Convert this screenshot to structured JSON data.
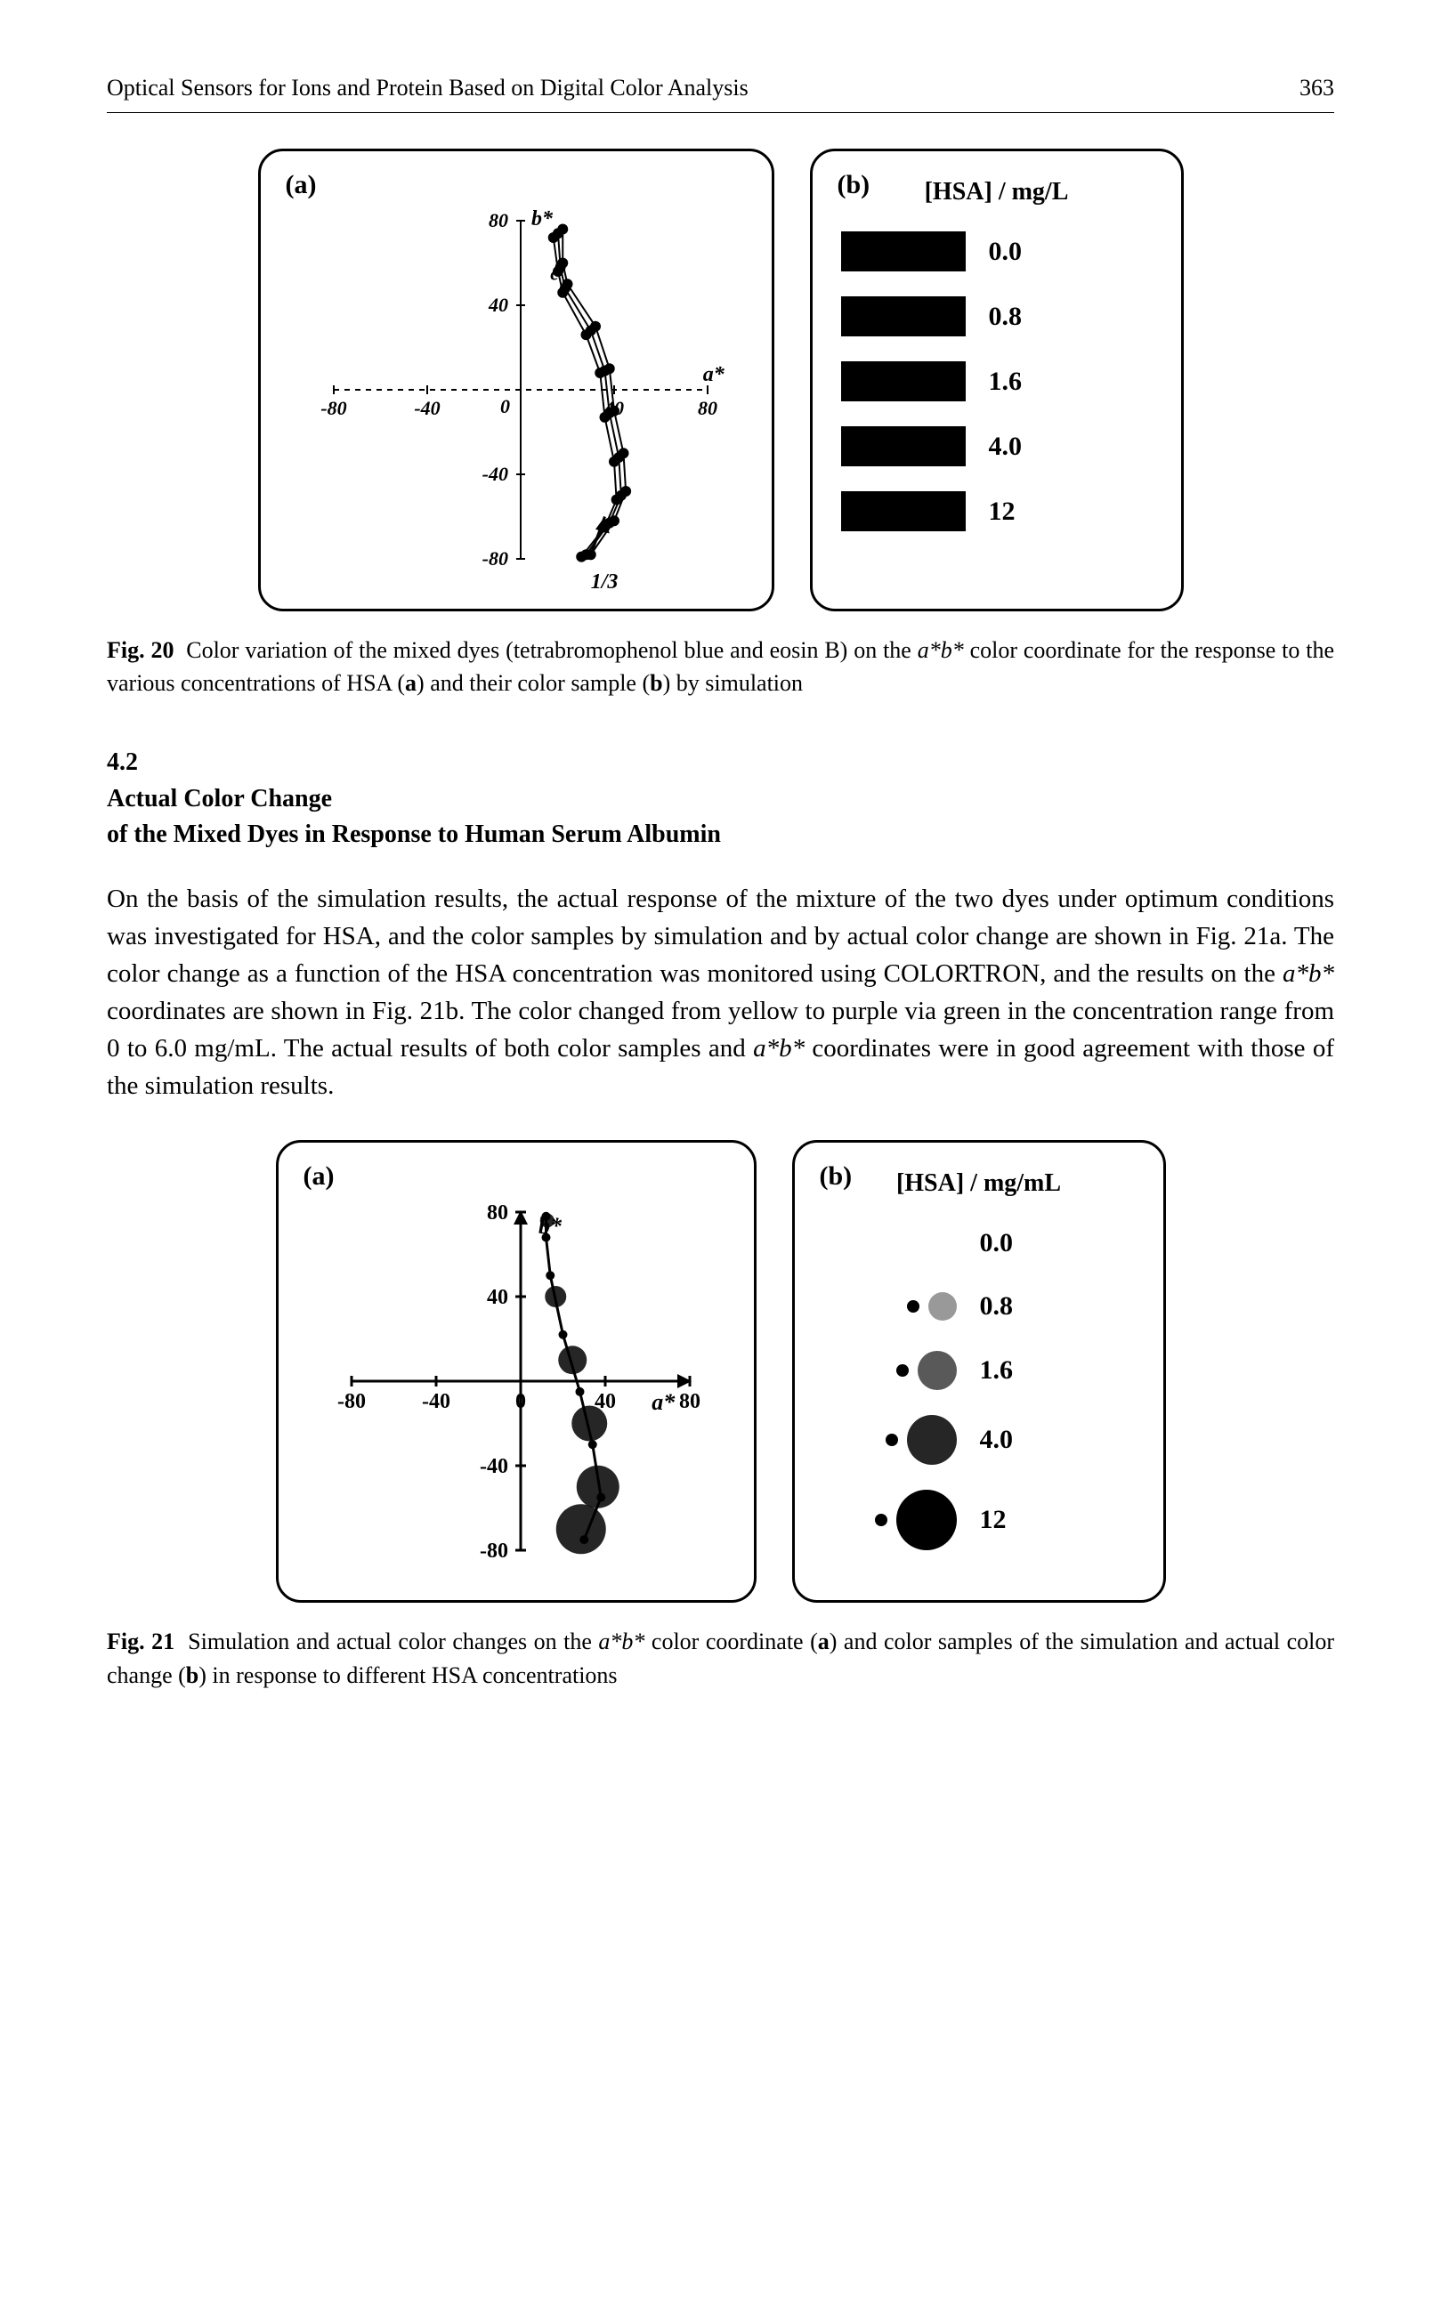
{
  "header": {
    "running_head": "Optical Sensors for Ions and Protein Based on Digital Color Analysis",
    "page_number": "363"
  },
  "fig20": {
    "panel_a": {
      "label": "(a)",
      "type": "scatter-line",
      "x_axis_label": "a*",
      "y_axis_label": "b*",
      "xlim": [
        -80,
        80
      ],
      "ylim": [
        -80,
        80
      ],
      "ticks": [
        -80,
        -40,
        0,
        40,
        80
      ],
      "annotation_c": "c",
      "annotation_ratio": "1/3",
      "series": [
        {
          "points": [
            [
              18,
              76
            ],
            [
              18,
              60
            ],
            [
              20,
              50
            ],
            [
              32,
              30
            ],
            [
              38,
              10
            ],
            [
              40,
              -10
            ],
            [
              44,
              -30
            ],
            [
              45,
              -48
            ],
            [
              40,
              -62
            ],
            [
              30,
              -78
            ]
          ],
          "color": "#000000",
          "line_width": 2
        },
        {
          "points": [
            [
              16,
              74
            ],
            [
              17,
              58
            ],
            [
              19,
              48
            ],
            [
              30,
              28
            ],
            [
              36,
              9
            ],
            [
              38,
              -11
            ],
            [
              42,
              -32
            ],
            [
              43,
              -50
            ],
            [
              38,
              -63
            ],
            [
              28,
              -78
            ]
          ],
          "color": "#000000",
          "line_width": 2
        },
        {
          "points": [
            [
              14,
              72
            ],
            [
              16,
              56
            ],
            [
              18,
              46
            ],
            [
              28,
              26
            ],
            [
              34,
              8
            ],
            [
              36,
              -13
            ],
            [
              40,
              -34
            ],
            [
              41,
              -52
            ],
            [
              36,
              -65
            ],
            [
              26,
              -79
            ]
          ],
          "color": "#000000",
          "line_width": 2
        }
      ],
      "marker_style": "circle",
      "marker_size": 6,
      "background_color": "#ffffff",
      "axis_color": "#000000"
    },
    "panel_b": {
      "label": "(b)",
      "title": "[HSA] / mg/L",
      "swatches": [
        {
          "color": "#000000",
          "value": "0.0"
        },
        {
          "color": "#000000",
          "value": "0.8"
        },
        {
          "color": "#000000",
          "value": "1.6"
        },
        {
          "color": "#000000",
          "value": "4.0"
        },
        {
          "color": "#000000",
          "value": "12"
        }
      ],
      "swatch_width": 140,
      "swatch_height": 45
    },
    "caption_lead": "Fig. 20",
    "caption_text": "Color variation of the mixed dyes (tetrabromophenol blue and eosin B) on the a*b* color coordinate for the response to the various concentrations of HSA (a) and their color sample (b) by simulation"
  },
  "section": {
    "number": "4.2",
    "title_line1": "Actual Color Change",
    "title_line2": "of the Mixed Dyes in Response to Human Serum Albumin",
    "body": "On the basis of the simulation results, the actual response of the mixture of the two dyes under optimum conditions was investigated for HSA, and the color samples by simulation and by actual color change are shown in Fig. 21a. The color change as a function of the HSA concentration was monitored using COLORTRON, and the results on the a*b* coordinates are shown in Fig. 21b. The color changed from yellow to purple via green in the concentration range from 0 to 6.0 mg/mL. The actual results of both color samples and a*b* coordinates were in good agreement with those of the simulation results."
  },
  "fig21": {
    "panel_a": {
      "label": "(a)",
      "type": "scatter-line",
      "x_axis_label": "a*",
      "y_axis_label": "b*",
      "xlim": [
        -80,
        80
      ],
      "ylim": [
        -80,
        80
      ],
      "ticks": [
        -80,
        -40,
        0,
        40,
        80
      ],
      "sim_points": [
        [
          12,
          78
        ],
        [
          12,
          68
        ],
        [
          14,
          50
        ],
        [
          20,
          22
        ],
        [
          28,
          -5
        ],
        [
          34,
          -30
        ],
        [
          38,
          -55
        ],
        [
          30,
          -75
        ]
      ],
      "actual_points": [
        [
          10,
          76
        ],
        [
          14,
          40
        ],
        [
          22,
          10
        ],
        [
          30,
          -20
        ],
        [
          34,
          -50
        ],
        [
          26,
          -70
        ]
      ],
      "actual_marker": "blob",
      "line_color": "#000000",
      "line_width": 3,
      "background_color": "#ffffff",
      "axis_color": "#000000"
    },
    "panel_b": {
      "label": "(b)",
      "title": "[HSA] / mg/mL",
      "rows": [
        {
          "sim_color": "#ffffff",
          "actual_blob": null,
          "value": "0.0"
        },
        {
          "sim_color": "#ffffff",
          "actual_blob": "#000000",
          "value": "0.8",
          "blob_style": "sparse"
        },
        {
          "sim_color": "#ffffff",
          "actual_blob": "#000000",
          "value": "1.6",
          "blob_style": "medium"
        },
        {
          "sim_color": "#ffffff",
          "actual_blob": "#000000",
          "value": "4.0",
          "blob_style": "dense"
        },
        {
          "sim_color": "#ffffff",
          "actual_blob": "#000000",
          "value": "12",
          "blob_style": "solid"
        }
      ]
    },
    "caption_lead": "Fig. 21",
    "caption_text": "Simulation and actual color changes on the a*b* color coordinate (a) and color samples of the simulation and actual color change (b) in response to different HSA concentrations"
  }
}
